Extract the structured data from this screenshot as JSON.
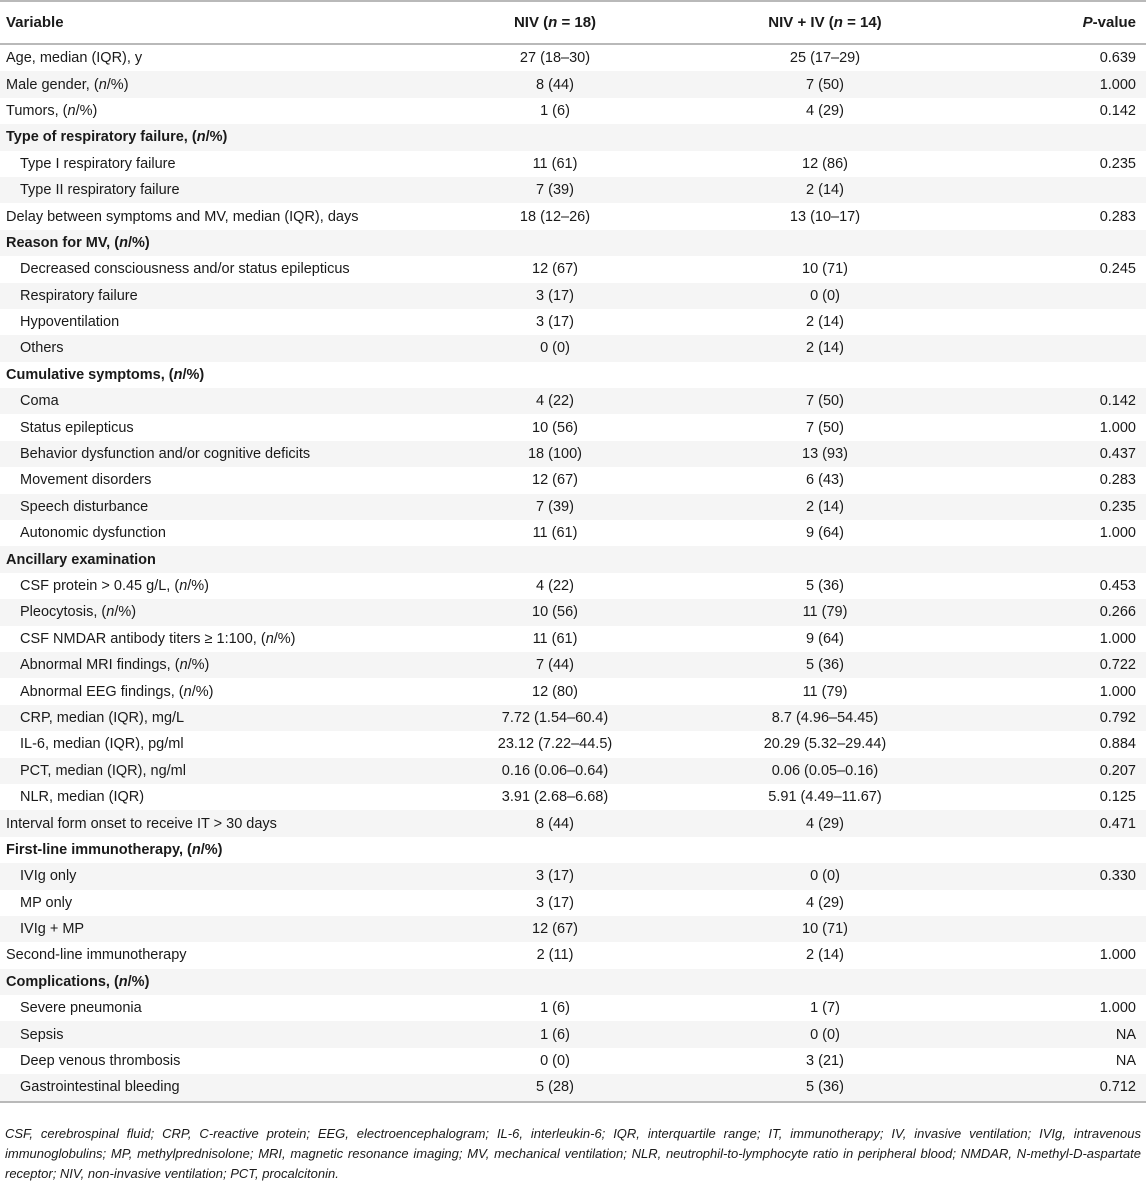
{
  "table": {
    "headers": {
      "variable": "Variable",
      "niv": "NIV (n = 18)",
      "niv_iv": "NIV + IV (n = 14)",
      "p_value": "P-value"
    },
    "rows": [
      {
        "label": "Age, median (IQR), y",
        "niv": "27 (18–30)",
        "niv_iv": "25 (17–29)",
        "p": "0.639",
        "kind": "row"
      },
      {
        "label": "Male gender, (n/%)",
        "niv": "8 (44)",
        "niv_iv": "7 (50)",
        "p": "1.000",
        "kind": "row"
      },
      {
        "label": "Tumors, (n/%)",
        "niv": "1 (6)",
        "niv_iv": "4 (29)",
        "p": "0.142",
        "kind": "row"
      },
      {
        "label": "Type of respiratory failure, (n/%)",
        "niv": "",
        "niv_iv": "",
        "p": "",
        "kind": "section"
      },
      {
        "label": "Type I respiratory failure",
        "niv": "11 (61)",
        "niv_iv": "12 (86)",
        "p": "0.235",
        "kind": "sub"
      },
      {
        "label": "Type II respiratory failure",
        "niv": "7 (39)",
        "niv_iv": "2 (14)",
        "p": "",
        "kind": "sub"
      },
      {
        "label": "Delay between symptoms and MV, median (IQR), days",
        "niv": "18 (12–26)",
        "niv_iv": "13 (10–17)",
        "p": "0.283",
        "kind": "row"
      },
      {
        "label": "Reason for MV, (n/%)",
        "niv": "",
        "niv_iv": "",
        "p": "",
        "kind": "section"
      },
      {
        "label": "Decreased consciousness and/or status epilepticus",
        "niv": "12 (67)",
        "niv_iv": "10 (71)",
        "p": "0.245",
        "kind": "sub"
      },
      {
        "label": "Respiratory failure",
        "niv": "3 (17)",
        "niv_iv": "0 (0)",
        "p": "",
        "kind": "sub"
      },
      {
        "label": "Hypoventilation",
        "niv": "3 (17)",
        "niv_iv": "2 (14)",
        "p": "",
        "kind": "sub"
      },
      {
        "label": "Others",
        "niv": "0 (0)",
        "niv_iv": "2 (14)",
        "p": "",
        "kind": "sub"
      },
      {
        "label": "Cumulative symptoms, (n/%)",
        "niv": "",
        "niv_iv": "",
        "p": "",
        "kind": "section"
      },
      {
        "label": "Coma",
        "niv": "4 (22)",
        "niv_iv": "7 (50)",
        "p": "0.142",
        "kind": "sub"
      },
      {
        "label": "Status epilepticus",
        "niv": "10 (56)",
        "niv_iv": "7 (50)",
        "p": "1.000",
        "kind": "sub"
      },
      {
        "label": "Behavior dysfunction and/or cognitive deficits",
        "niv": "18 (100)",
        "niv_iv": "13 (93)",
        "p": "0.437",
        "kind": "sub"
      },
      {
        "label": "Movement disorders",
        "niv": "12 (67)",
        "niv_iv": "6 (43)",
        "p": "0.283",
        "kind": "sub"
      },
      {
        "label": "Speech disturbance",
        "niv": "7 (39)",
        "niv_iv": "2 (14)",
        "p": "0.235",
        "kind": "sub"
      },
      {
        "label": "Autonomic dysfunction",
        "niv": "11 (61)",
        "niv_iv": "9 (64)",
        "p": "1.000",
        "kind": "sub"
      },
      {
        "label": "Ancillary examination",
        "niv": "",
        "niv_iv": "",
        "p": "",
        "kind": "section"
      },
      {
        "label": "CSF protein > 0.45 g/L, (n/%)",
        "niv": "4 (22)",
        "niv_iv": "5 (36)",
        "p": "0.453",
        "kind": "sub"
      },
      {
        "label": "Pleocytosis, (n/%)",
        "niv": "10 (56)",
        "niv_iv": "11 (79)",
        "p": "0.266",
        "kind": "sub"
      },
      {
        "label": "CSF NMDAR antibody titers ≥ 1:100, (n/%)",
        "niv": "11 (61)",
        "niv_iv": "9 (64)",
        "p": "1.000",
        "kind": "sub"
      },
      {
        "label": "Abnormal MRI findings, (n/%)",
        "niv": "7 (44)",
        "niv_iv": "5 (36)",
        "p": "0.722",
        "kind": "sub"
      },
      {
        "label": "Abnormal EEG findings, (n/%)",
        "niv": "12 (80)",
        "niv_iv": "11 (79)",
        "p": "1.000",
        "kind": "sub"
      },
      {
        "label": "CRP, median (IQR), mg/L",
        "niv": "7.72 (1.54–60.4)",
        "niv_iv": "8.7 (4.96–54.45)",
        "p": "0.792",
        "kind": "sub"
      },
      {
        "label": "IL-6, median (IQR), pg/ml",
        "niv": "23.12 (7.22–44.5)",
        "niv_iv": "20.29 (5.32–29.44)",
        "p": "0.884",
        "kind": "sub"
      },
      {
        "label": "PCT, median (IQR), ng/ml",
        "niv": "0.16 (0.06–0.64)",
        "niv_iv": "0.06 (0.05–0.16)",
        "p": "0.207",
        "kind": "sub"
      },
      {
        "label": "NLR, median (IQR)",
        "niv": "3.91 (2.68–6.68)",
        "niv_iv": "5.91 (4.49–11.67)",
        "p": "0.125",
        "kind": "sub"
      },
      {
        "label": "Interval form onset to receive IT > 30 days",
        "niv": "8 (44)",
        "niv_iv": "4 (29)",
        "p": "0.471",
        "kind": "row"
      },
      {
        "label": "First-line immunotherapy, (n/%)",
        "niv": "",
        "niv_iv": "",
        "p": "",
        "kind": "section"
      },
      {
        "label": "IVIg only",
        "niv": "3 (17)",
        "niv_iv": "0 (0)",
        "p": "0.330",
        "kind": "sub"
      },
      {
        "label": "MP only",
        "niv": "3 (17)",
        "niv_iv": "4 (29)",
        "p": "",
        "kind": "sub"
      },
      {
        "label": "IVIg + MP",
        "niv": "12 (67)",
        "niv_iv": "10 (71)",
        "p": "",
        "kind": "sub"
      },
      {
        "label": "Second-line immunotherapy",
        "niv": "2 (11)",
        "niv_iv": "2 (14)",
        "p": "1.000",
        "kind": "row"
      },
      {
        "label": "Complications, (n/%)",
        "niv": "",
        "niv_iv": "",
        "p": "",
        "kind": "section"
      },
      {
        "label": "Severe pneumonia",
        "niv": "1 (6)",
        "niv_iv": "1 (7)",
        "p": "1.000",
        "kind": "sub"
      },
      {
        "label": "Sepsis",
        "niv": "1 (6)",
        "niv_iv": "0 (0)",
        "p": "NA",
        "kind": "sub"
      },
      {
        "label": "Deep venous thrombosis",
        "niv": "0 (0)",
        "niv_iv": "3 (21)",
        "p": "NA",
        "kind": "sub"
      },
      {
        "label": "Gastrointestinal bleeding",
        "niv": "5 (28)",
        "niv_iv": "5 (36)",
        "p": "0.712",
        "kind": "sub"
      }
    ]
  },
  "footnote": "CSF, cerebrospinal fluid; CRP, C-reactive protein; EEG, electroencephalogram; IL-6, interleukin-6; IQR, interquartile range; IT, immunotherapy; IV, invasive ventilation; IVIg, intravenous immunoglobulins; MP, methylprednisolone; MRI, magnetic resonance imaging; MV, mechanical ventilation; NLR, neutrophil-to-lymphocyte ratio in peripheral blood; NMDAR, N-methyl-D-aspartate receptor; NIV, non-invasive ventilation; PCT, procalcitonin.",
  "colors": {
    "rule": "#b9b9b9",
    "stripe": "#f5f5f5",
    "text": "#1a1a1a"
  }
}
